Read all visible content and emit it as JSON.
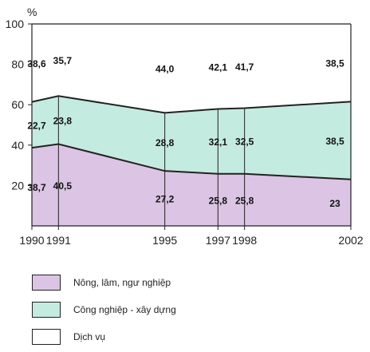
{
  "chart_data": {
    "type": "area",
    "stacked": true,
    "ylabel": "%",
    "ylim": [
      0,
      100
    ],
    "y_ticks": [
      20,
      40,
      60,
      80,
      100
    ],
    "x": [
      1990,
      1991,
      1995,
      1997,
      1998,
      2002
    ],
    "x_tick_labels": [
      "1990",
      "1991",
      "1995",
      "1997",
      "1998",
      "2002"
    ],
    "grid": false,
    "legend_position": "bottom",
    "series": [
      {
        "name": "Nông, lâm, ngư nghiệp",
        "values": [
          38.7,
          40.5,
          27.2,
          25.8,
          25.8,
          23
        ],
        "labels": [
          "38,7",
          "40,5",
          "27,2",
          "25,8",
          "25,8",
          "23"
        ],
        "color": "#dcc4e4"
      },
      {
        "name": "Công nghiệp - xây dựng",
        "values": [
          22.7,
          23.8,
          28.8,
          32.1,
          32.5,
          38.5
        ],
        "labels": [
          "22,7",
          "23,8",
          "28,8",
          "32,1",
          "32,5",
          "38,5"
        ],
        "color": "#c4ebe0"
      },
      {
        "name": "Dịch vụ",
        "values": [
          38.6,
          35.7,
          44.0,
          42.1,
          41.7,
          38.5
        ],
        "labels": [
          "38,6",
          "35,7",
          "44,0",
          "42,1",
          "41,7",
          "38,5"
        ],
        "color": "#ffffff"
      }
    ]
  }
}
